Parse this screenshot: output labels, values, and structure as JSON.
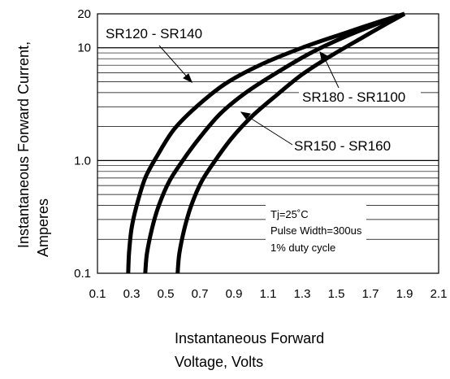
{
  "chart_data": {
    "type": "line",
    "title": "",
    "xlabel_lines": [
      "Instantaneous Forward",
      "Voltage, Volts"
    ],
    "ylabel_lines": [
      "Instantaneous Forward Current,",
      "Amperes"
    ],
    "x_scale": "linear",
    "y_scale": "log",
    "xlim": [
      0.1,
      2.1
    ],
    "ylim": [
      0.1,
      20
    ],
    "x_ticks": [
      0.1,
      0.3,
      0.5,
      0.7,
      0.9,
      1.1,
      1.3,
      1.5,
      1.7,
      1.9,
      2.1
    ],
    "x_tick_labels": [
      "0.1",
      "0.3",
      "0.5",
      "0.7",
      "0.9",
      "1.1",
      "1.3",
      "1.5",
      "1.7",
      "1.9",
      "2.1"
    ],
    "y_ticks": [
      0.1,
      1.0,
      10,
      20
    ],
    "y_tick_labels": [
      "0.1",
      "1.0",
      "10",
      "20"
    ],
    "grid": "horizontal",
    "line_color": "#000000",
    "series": [
      {
        "name": "SR120 - SR140",
        "x": [
          0.28,
          0.285,
          0.3,
          0.33,
          0.38,
          0.45,
          0.55,
          0.68,
          0.85,
          1.05,
          1.3,
          1.55,
          1.75,
          1.9
        ],
        "y": [
          0.1,
          0.15,
          0.25,
          0.4,
          0.7,
          1.1,
          1.9,
          3.0,
          4.8,
          7.0,
          10.0,
          13.5,
          17.0,
          20
        ]
      },
      {
        "name": "SR150 - SR160",
        "x": [
          0.38,
          0.39,
          0.42,
          0.46,
          0.52,
          0.6,
          0.7,
          0.82,
          0.97,
          1.15,
          1.35,
          1.55,
          1.75,
          1.9
        ],
        "y": [
          0.1,
          0.15,
          0.25,
          0.4,
          0.65,
          1.0,
          1.6,
          2.6,
          4.0,
          6.0,
          9.0,
          12.5,
          16.5,
          20
        ]
      },
      {
        "name": "SR180 - SR1100",
        "x": [
          0.57,
          0.58,
          0.61,
          0.65,
          0.71,
          0.79,
          0.89,
          1.01,
          1.15,
          1.3,
          1.47,
          1.64,
          1.8,
          1.9
        ],
        "y": [
          0.1,
          0.15,
          0.25,
          0.4,
          0.65,
          1.0,
          1.6,
          2.5,
          3.8,
          5.8,
          8.5,
          12.0,
          16.5,
          20
        ]
      }
    ],
    "annotation_lines": [
      "Tj=25˚C",
      "Pulse Width=300us",
      "1% duty cycle"
    ]
  }
}
